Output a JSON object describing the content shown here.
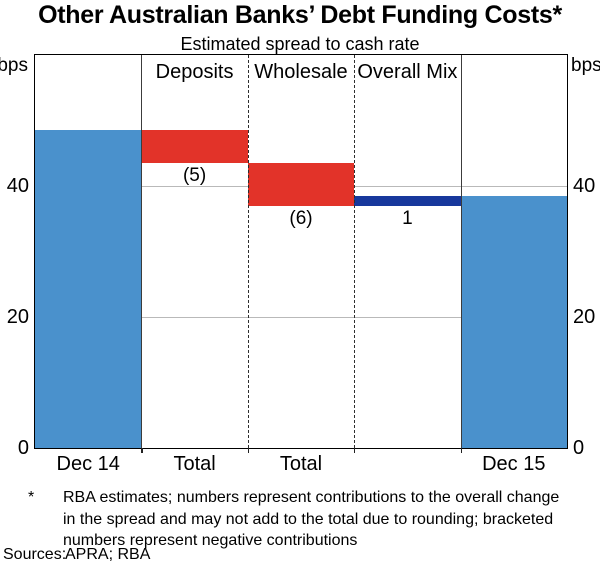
{
  "title": "Other Australian Banks’ Debt Funding Costs*",
  "subtitle": "Estimated spread to cash rate",
  "axis": {
    "unit_left": "bps",
    "unit_right": "bps",
    "ticks": [
      0,
      20,
      40
    ]
  },
  "chart_data": {
    "type": "bar",
    "subtype": "waterfall",
    "title": "Other Australian Banks’ Debt Funding Costs*",
    "subtitle": "Estimated spread to cash rate",
    "ylabel": "bps",
    "ylim": [
      0,
      60
    ],
    "yticks": [
      0,
      20,
      40
    ],
    "gridlines": [
      20,
      40
    ],
    "legend_position": "none",
    "columns": [
      {
        "name": "dec-14",
        "header": "",
        "x_label": "Dec 14",
        "from": 0,
        "to": 48.5,
        "color_key": "blue",
        "value_label": ""
      },
      {
        "name": "deposits",
        "header": "Deposits",
        "x_label": "Total",
        "from": 48.5,
        "to": 43.5,
        "color_key": "red",
        "value_label": "(5)"
      },
      {
        "name": "wholesale",
        "header": "Wholesale",
        "x_label": "Total",
        "from": 43.5,
        "to": 37,
        "color_key": "red",
        "value_label": "(6)"
      },
      {
        "name": "overall-mix",
        "header": "Overall Mix",
        "x_label": "",
        "from": 37,
        "to": 38.5,
        "color_key": "navy",
        "value_label": "1"
      },
      {
        "name": "dec-15",
        "header": "",
        "x_label": "Dec 15",
        "from": 0,
        "to": 38.5,
        "color_key": "blue",
        "value_label": ""
      }
    ],
    "dividers": [
      "solid",
      "dashed",
      "dashed",
      "solid"
    ]
  },
  "colors": {
    "blue": "#4a91cc",
    "red": "#e23329",
    "navy": "#17389c",
    "grid": "#b9b9b9"
  },
  "footnote": {
    "marker": "*",
    "lines": [
      "RBA estimates; numbers represent contributions to the overall change",
      "in the spread and may not add to the total due to rounding; bracketed",
      "numbers represent negative contributions"
    ]
  },
  "sources": {
    "label": "Sources:",
    "value": "APRA; RBA"
  }
}
